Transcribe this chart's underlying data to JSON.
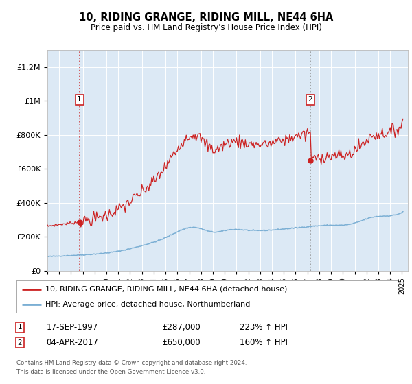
{
  "title": "10, RIDING GRANGE, RIDING MILL, NE44 6HA",
  "subtitle": "Price paid vs. HM Land Registry's House Price Index (HPI)",
  "legend_line1": "10, RIDING GRANGE, RIDING MILL, NE44 6HA (detached house)",
  "legend_line2": "HPI: Average price, detached house, Northumberland",
  "sale1_price": 287000,
  "sale1_label": "17-SEP-1997",
  "sale1_year": 1997.708,
  "sale1_pct": "223%",
  "sale2_price": 650000,
  "sale2_label": "04-APR-2017",
  "sale2_year": 2017.253,
  "sale2_pct": "160%",
  "footnote1": "Contains HM Land Registry data © Crown copyright and database right 2024.",
  "footnote2": "This data is licensed under the Open Government Licence v3.0.",
  "hpi_color": "#7bafd4",
  "price_color": "#cc2222",
  "plot_bg_color": "#dce9f5",
  "ylim": [
    0,
    1300000
  ],
  "yticks": [
    0,
    200000,
    400000,
    600000,
    800000,
    1000000,
    1200000
  ],
  "ytick_labels": [
    "£0",
    "£200K",
    "£400K",
    "£600K",
    "£800K",
    "£1M",
    "£1.2M"
  ],
  "xmin": 1995.0,
  "xmax": 2025.5
}
